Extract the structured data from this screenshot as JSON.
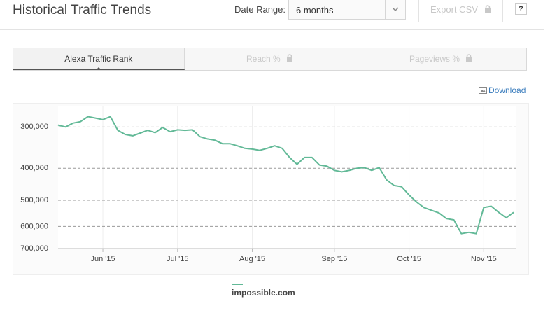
{
  "header": {
    "title": "Historical Traffic Trends",
    "date_range_label": "Date Range:",
    "date_range_value": "6 months",
    "export": "Export CSV",
    "help": "?"
  },
  "tabs": [
    "Alexa Traffic Rank",
    "Reach %",
    "Pageviews %"
  ],
  "download": "Download",
  "chart_data": {
    "type": "line",
    "categories": [
      null,
      null,
      null,
      null,
      null,
      null,
      "Jun '15",
      null,
      null,
      null,
      null,
      null,
      null,
      null,
      null,
      null,
      "Jul '15",
      null,
      null,
      null,
      null,
      null,
      null,
      null,
      null,
      null,
      "Aug '15",
      null,
      null,
      null,
      null,
      null,
      null,
      null,
      null,
      null,
      null,
      "Sep '15",
      null,
      null,
      null,
      null,
      null,
      null,
      null,
      null,
      null,
      "Oct '15",
      null,
      null,
      null,
      null,
      null,
      null,
      null,
      null,
      null,
      "Nov '15",
      null,
      null,
      null,
      null
    ],
    "series": [
      {
        "name": "impossible.com",
        "color": "#62b997",
        "values": [
          296000,
          300000,
          292000,
          289000,
          279000,
          282000,
          285000,
          279000,
          307000,
          316000,
          319000,
          313000,
          307000,
          312000,
          301000,
          310000,
          306000,
          307000,
          306000,
          321000,
          326000,
          329000,
          337000,
          337000,
          342000,
          348000,
          350000,
          353000,
          348000,
          342000,
          348000,
          371000,
          389000,
          371000,
          371000,
          391000,
          394000,
          406000,
          410000,
          406000,
          400000,
          398000,
          406000,
          398000,
          434000,
          451000,
          455000,
          482000,
          506000,
          526000,
          536000,
          546000,
          568000,
          573000,
          631000,
          625000,
          631000,
          526000,
          521000,
          544000,
          565000,
          544000
        ]
      }
    ],
    "ylim": [
      700000,
      260000
    ],
    "yticks": [
      {
        "value": 300000,
        "label": "300,000"
      },
      {
        "value": 400000,
        "label": "400,000"
      },
      {
        "value": 500000,
        "label": "500,000"
      },
      {
        "value": 600000,
        "label": "600,000"
      },
      {
        "value": 700000,
        "label": "700,000"
      }
    ],
    "log_scale": true,
    "grid": true
  }
}
